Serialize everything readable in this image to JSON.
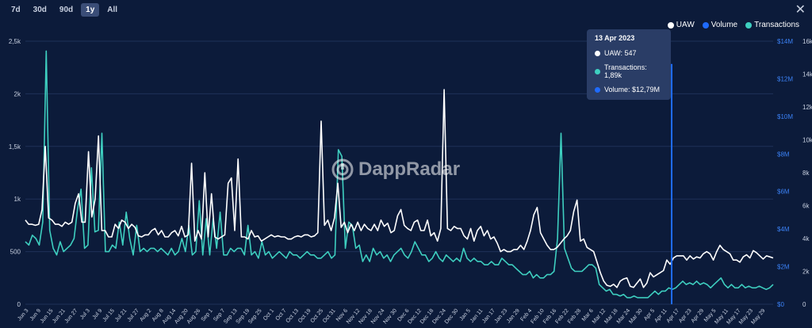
{
  "range_tabs": [
    {
      "label": "7d",
      "active": false
    },
    {
      "label": "30d",
      "active": false
    },
    {
      "label": "90d",
      "active": false
    },
    {
      "label": "1y",
      "active": true
    },
    {
      "label": "All",
      "active": false
    }
  ],
  "close_label": "✕",
  "watermark": "DappRadar",
  "legend": [
    {
      "label": "UAW",
      "color": "#ffffff"
    },
    {
      "label": "Volume",
      "color": "#1f6bff"
    },
    {
      "label": "Transactions",
      "color": "#3ecfc0"
    }
  ],
  "tooltip": {
    "date": "13 Apr 2023",
    "rows": [
      {
        "label": "UAW: 547",
        "color": "#ffffff"
      },
      {
        "label": "Transactions: 1,89k",
        "color": "#3ecfc0"
      },
      {
        "label": "Volume: $12,79M",
        "color": "#1f6bff"
      }
    ]
  },
  "chart_data": {
    "type": "line",
    "title": "",
    "xlabel": "",
    "ylabel": "",
    "x_ticks": [
      "Jun 3",
      "Jun 9",
      "Jun 15",
      "Jun 21",
      "Jun 27",
      "Jul 3",
      "Jul 9",
      "Jul 15",
      "Jul 21",
      "Jul 27",
      "Aug 2",
      "Aug 8",
      "Aug 14",
      "Aug 20",
      "Aug 26",
      "Sep 1",
      "Sep 7",
      "Sep 13",
      "Sep 19",
      "Sep 25",
      "Oct 1",
      "Oct 7",
      "Oct 13",
      "Oct 19",
      "Oct 25",
      "Oct 31",
      "Nov 6",
      "Nov 12",
      "Nov 18",
      "Nov 24",
      "Nov 30",
      "Dec 6",
      "Dec 12",
      "Dec 18",
      "Dec 24",
      "Dec 30",
      "Jan 5",
      "Jan 11",
      "Jan 17",
      "Jan 23",
      "Jan 29",
      "Feb 4",
      "Feb 10",
      "Feb 16",
      "Feb 22",
      "Feb 28",
      "Mar 6",
      "Mar 12",
      "Mar 18",
      "Mar 24",
      "Mar 30",
      "Apr 5",
      "Apr 11",
      "Apr 17",
      "Apr 23",
      "Apr 29",
      "May 5",
      "May 11",
      "May 17",
      "May 23",
      "May 29"
    ],
    "y_left": {
      "ticks": [
        0,
        500,
        1000,
        1500,
        2000,
        2500
      ],
      "tick_labels": [
        "0",
        "500",
        "1k",
        "1,5k",
        "2k",
        "2,5k"
      ],
      "range": [
        0,
        2500
      ]
    },
    "y_mid": {
      "ticks": [
        0,
        2,
        4,
        6,
        8,
        10,
        12,
        14
      ],
      "tick_labels": [
        "$0",
        "$2M",
        "$4M",
        "$6M",
        "$8M",
        "$10M",
        "$12M",
        "$14M"
      ],
      "range": [
        0,
        14
      ],
      "unit": "$M"
    },
    "y_right": {
      "ticks": [
        0,
        2000,
        4000,
        6000,
        8000,
        10000,
        12000,
        14000,
        16000
      ],
      "tick_labels": [
        "0",
        "2k",
        "4k",
        "6k",
        "8k",
        "10k",
        "12k",
        "14k",
        "16k"
      ],
      "range": [
        0,
        16000
      ]
    },
    "grid": true,
    "highlight_date_index": 62,
    "series": [
      {
        "name": "UAW",
        "color": "#ffffff",
        "axis": "left",
        "values": [
          800,
          760,
          760,
          750,
          760,
          900,
          1500,
          820,
          800,
          760,
          760,
          740,
          780,
          760,
          780,
          960,
          1050,
          780,
          780,
          1450,
          830,
          1000,
          1600,
          700,
          700,
          640,
          640,
          760,
          720,
          800,
          780,
          720,
          760,
          730,
          650,
          640,
          660,
          660,
          700,
          720,
          660,
          700,
          640,
          640,
          680,
          700,
          650,
          740,
          640,
          660,
          1340,
          600,
          700,
          620,
          1250,
          640,
          1050,
          640,
          620,
          640,
          660,
          1150,
          1200,
          700,
          1380,
          640,
          640,
          620,
          700,
          640,
          650,
          600,
          620,
          640,
          660,
          640,
          650,
          640,
          640,
          620,
          620,
          640,
          650,
          640,
          660,
          660,
          640,
          650,
          680,
          1740,
          750,
          800,
          700,
          820,
          1150,
          730,
          780,
          680,
          760,
          700,
          780,
          700,
          760,
          720,
          700,
          760,
          700,
          800,
          740,
          770,
          680,
          700,
          840,
          900,
          750,
          720,
          700,
          780,
          800,
          700,
          700,
          800,
          650,
          680,
          600,
          720,
          2040,
          720,
          700,
          740,
          720,
          720,
          650,
          620,
          720,
          600,
          700,
          740,
          650,
          700,
          620,
          640,
          580,
          500,
          520,
          500,
          500,
          520,
          520,
          560,
          520,
          600,
          700,
          850,
          920,
          680,
          620,
          560,
          520,
          520,
          540,
          580,
          620,
          650,
          700,
          880,
          990,
          600,
          620,
          540,
          520,
          500,
          400,
          300,
          220,
          180,
          170,
          190,
          160,
          220,
          240,
          250,
          170,
          160,
          200,
          240,
          160,
          200,
          300,
          260,
          280,
          300,
          320,
          420,
          380,
          440,
          460,
          460,
          460,
          420,
          460,
          430,
          450,
          440,
          480,
          500,
          480,
          420,
          500,
          560,
          520,
          500,
          480,
          420,
          420,
          400,
          450,
          470,
          440,
          510,
          490,
          460,
          430,
          460,
          450,
          440
        ],
        "note": "daily UAW reading, approximate"
      },
      {
        "name": "Transactions",
        "color": "#3ecfc0",
        "axis": "right",
        "values": [
          3800,
          3600,
          4200,
          4000,
          3600,
          5000,
          15400,
          4500,
          3400,
          3000,
          3800,
          3200,
          3400,
          3600,
          4000,
          5800,
          7000,
          3400,
          3600,
          8300,
          4400,
          4500,
          10400,
          3200,
          3200,
          3600,
          3400,
          5000,
          3600,
          5600,
          4000,
          3000,
          4800,
          3200,
          3400,
          3200,
          3400,
          3400,
          3200,
          3400,
          3200,
          3000,
          3400,
          3000,
          3200,
          4000,
          3200,
          4800,
          3000,
          3200,
          6300,
          3000,
          5200,
          3000,
          5200,
          3400,
          5600,
          3000,
          3000,
          3400,
          3200,
          3400,
          3400,
          3000,
          4800,
          3000,
          3200,
          2800,
          3800,
          3000,
          3200,
          2800,
          3000,
          3200,
          3000,
          2800,
          3200,
          3000,
          3000,
          2800,
          3000,
          3200,
          3000,
          3000,
          2800,
          2800,
          3000,
          3200,
          2800,
          3000,
          9400,
          9000,
          3400,
          5000,
          4800,
          3400,
          3600,
          2600,
          3000,
          2600,
          3400,
          3000,
          3200,
          2800,
          3000,
          2600,
          3000,
          3200,
          3400,
          3000,
          2800,
          3200,
          3800,
          3400,
          3000,
          3000,
          2600,
          2800,
          3200,
          2800,
          2600,
          3000,
          2800,
          2600,
          2800,
          2600,
          3400,
          2800,
          2600,
          2800,
          2600,
          2600,
          2400,
          2400,
          2600,
          2400,
          2400,
          2800,
          2600,
          2400,
          2400,
          2200,
          2000,
          1800,
          1800,
          2000,
          1600,
          1800,
          1600,
          1600,
          1800,
          1800,
          2000,
          4000,
          10400,
          3400,
          2800,
          2200,
          2000,
          2000,
          2000,
          2200,
          2400,
          2400,
          2200,
          1200,
          1000,
          800,
          900,
          600,
          600,
          500,
          600,
          400,
          400,
          500,
          400,
          400,
          400,
          400,
          600,
          800,
          600,
          800,
          800,
          1000,
          900,
          1000,
          1200,
          1400,
          1200,
          1300,
          1200,
          1400,
          1200,
          1300,
          1200,
          1000,
          1200,
          1400,
          1600,
          1200,
          1000,
          1200,
          1000,
          1000,
          1200,
          1000,
          1100,
          1000,
          1000,
          1100,
          1000,
          900,
          1000,
          1200
        ],
        "note": "daily transactions reading, approximate"
      },
      {
        "name": "Volume",
        "color": "#1f6bff",
        "axis": "mid",
        "highlight_value": 12.79,
        "note": "only the highlighted 13 Apr 2023 value ($12,79M) is drawn as a visible bar"
      }
    ]
  }
}
